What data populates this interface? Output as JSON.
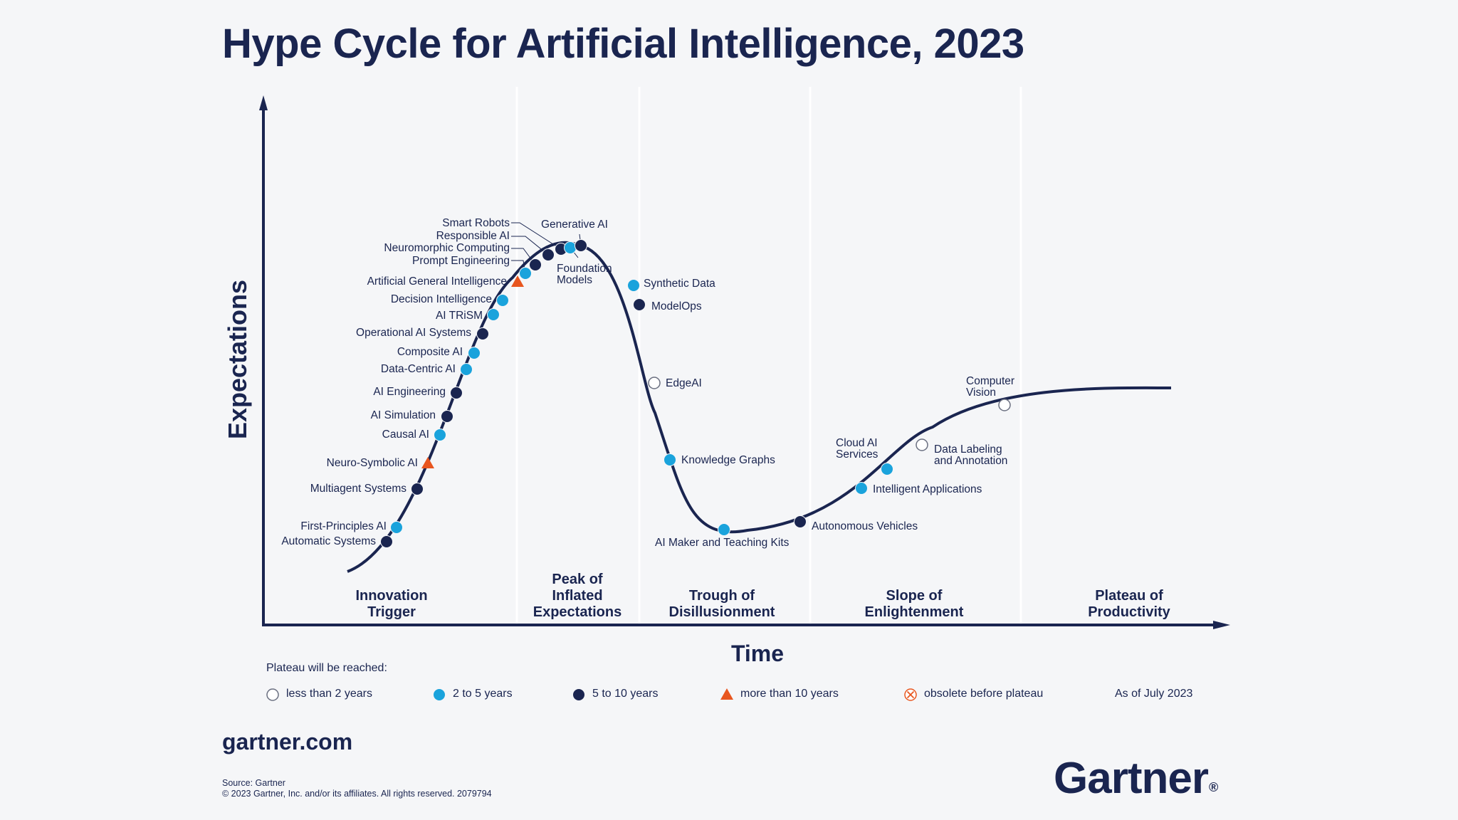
{
  "title": "Hype Cycle for Artificial Intelligence, 2023",
  "y_axis_label": "Expectations",
  "x_axis_label": "Time",
  "phases": [
    {
      "lines": [
        "Innovation",
        "Trigger"
      ]
    },
    {
      "lines": [
        "Peak of",
        "Inflated",
        "Expectations"
      ]
    },
    {
      "lines": [
        "Trough of",
        "Disillusionment"
      ]
    },
    {
      "lines": [
        "Slope of",
        "Enlightenment"
      ]
    },
    {
      "lines": [
        "Plateau of",
        "Productivity"
      ]
    }
  ],
  "technologies": [
    {
      "name": "Automatic Systems",
      "lines": [
        "Automatic Systems"
      ],
      "category": "5-10"
    },
    {
      "name": "First-Principles AI",
      "lines": [
        "First-Principles AI"
      ],
      "category": "2-5"
    },
    {
      "name": "Multiagent Systems",
      "lines": [
        "Multiagent Systems"
      ],
      "category": "5-10"
    },
    {
      "name": "Neuro-Symbolic AI",
      "lines": [
        "Neuro-Symbolic AI"
      ],
      "category": "10+"
    },
    {
      "name": "Causal AI",
      "lines": [
        "Causal AI"
      ],
      "category": "2-5"
    },
    {
      "name": "AI Simulation",
      "lines": [
        "AI Simulation"
      ],
      "category": "5-10"
    },
    {
      "name": "AI Engineering",
      "lines": [
        "AI Engineering"
      ],
      "category": "5-10"
    },
    {
      "name": "Data-Centric AI",
      "lines": [
        "Data-Centric AI"
      ],
      "category": "2-5"
    },
    {
      "name": "Composite AI",
      "lines": [
        "Composite AI"
      ],
      "category": "2-5"
    },
    {
      "name": "Operational AI Systems",
      "lines": [
        "Operational AI Systems"
      ],
      "category": "5-10"
    },
    {
      "name": "AI TRiSM",
      "lines": [
        "AI TRiSM"
      ],
      "category": "2-5"
    },
    {
      "name": "Decision Intelligence",
      "lines": [
        "Decision Intelligence"
      ],
      "category": "2-5"
    },
    {
      "name": "Artificial General Intelligence",
      "lines": [
        "Artificial General Intelligence"
      ],
      "category": "10+"
    },
    {
      "name": "Prompt Engineering",
      "lines": [
        "Prompt Engineering"
      ],
      "category": "2-5"
    },
    {
      "name": "Neuromorphic Computing",
      "lines": [
        "Neuromorphic Computing"
      ],
      "category": "5-10"
    },
    {
      "name": "Responsible AI",
      "lines": [
        "Responsible AI"
      ],
      "category": "5-10"
    },
    {
      "name": "Smart Robots",
      "lines": [
        "Smart Robots"
      ],
      "category": "5-10"
    },
    {
      "name": "Foundation Models",
      "lines": [
        "Foundation",
        "Models"
      ],
      "category": "2-5"
    },
    {
      "name": "Generative AI",
      "lines": [
        "Generative AI"
      ],
      "category": "5-10"
    },
    {
      "name": "Synthetic Data",
      "lines": [
        "Synthetic Data"
      ],
      "category": "2-5"
    },
    {
      "name": "ModelOps",
      "lines": [
        "ModelOps"
      ],
      "category": "5-10"
    },
    {
      "name": "EdgeAI",
      "lines": [
        "EdgeAI"
      ],
      "category": "<2"
    },
    {
      "name": "Knowledge Graphs",
      "lines": [
        "Knowledge Graphs"
      ],
      "category": "2-5"
    },
    {
      "name": "AI Maker and Teaching Kits",
      "lines": [
        "AI Maker and Teaching Kits"
      ],
      "category": "2-5"
    },
    {
      "name": "Autonomous Vehicles",
      "lines": [
        "Autonomous Vehicles"
      ],
      "category": "5-10"
    },
    {
      "name": "Intelligent Applications",
      "lines": [
        "Intelligent Applications"
      ],
      "category": "2-5"
    },
    {
      "name": "Cloud AI Services",
      "lines": [
        "Cloud AI",
        "Services"
      ],
      "category": "2-5"
    },
    {
      "name": "Data Labeling and Annotation",
      "lines": [
        "Data Labeling",
        "and Annotation"
      ],
      "category": "<2"
    },
    {
      "name": "Computer Vision",
      "lines": [
        "Computer",
        "Vision"
      ],
      "category": "<2"
    }
  ],
  "legend": {
    "heading": "Plateau will be reached:",
    "items": [
      {
        "key": "<2",
        "label": "less than 2 years"
      },
      {
        "key": "2-5",
        "label": "2 to 5 years"
      },
      {
        "key": "5-10",
        "label": "5 to 10 years"
      },
      {
        "key": "10+",
        "label": "more than 10 years"
      },
      {
        "key": "obsolete",
        "label": "obsolete before plateau"
      }
    ]
  },
  "as_of": "As of July 2023",
  "website": "gartner.com",
  "source_line1": "Source: Gartner",
  "source_line2": "© 2023 Gartner, Inc. and/or its affiliates. All rights reserved. 2079794",
  "logo_text": "Gartner",
  "colors": {
    "navy": "#1a2550",
    "light_blue": "#1aa3dc",
    "orange": "#e8561f",
    "grid": "#ffffff",
    "background": "#f5f6f8"
  }
}
